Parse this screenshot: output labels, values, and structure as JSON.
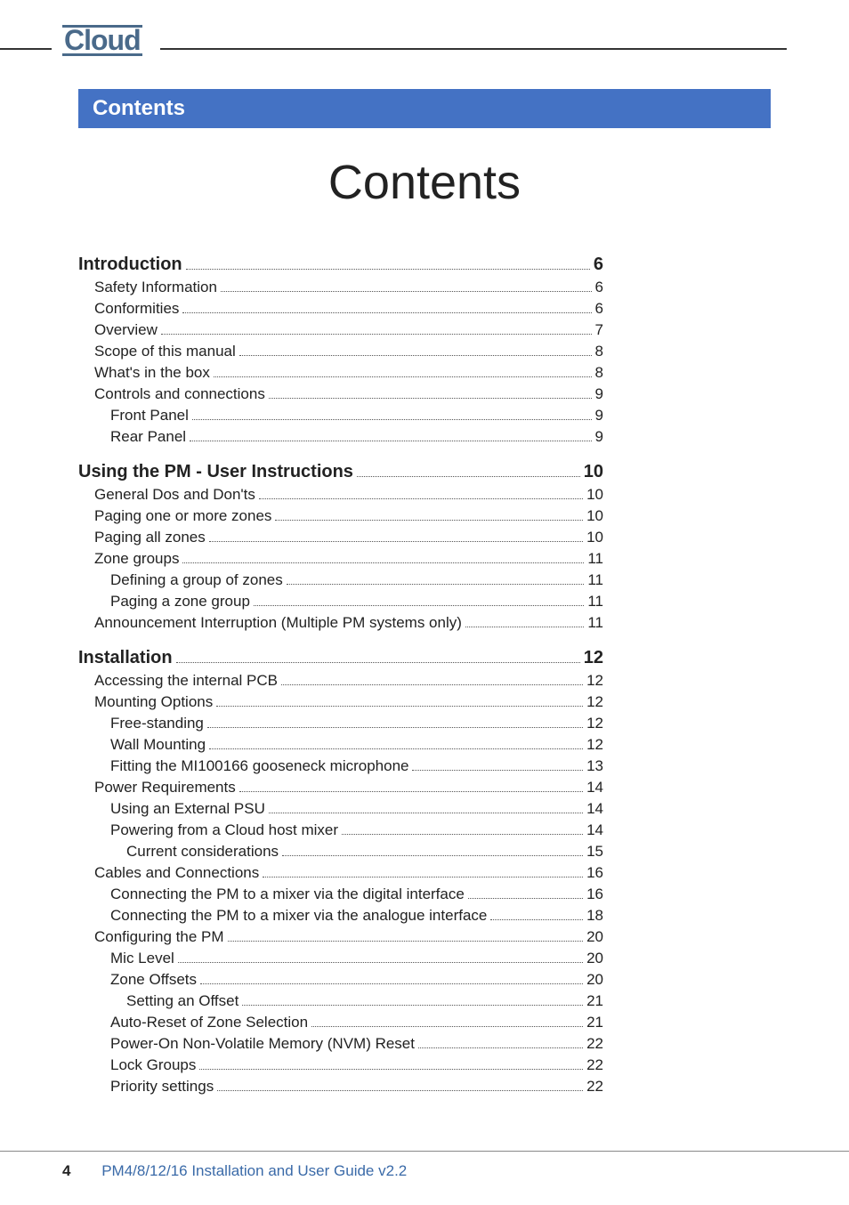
{
  "brand": "Cloud",
  "section_bar": "Contents",
  "main_title": "Contents",
  "footer": {
    "page": "4",
    "doc": "PM4/8/12/16 Installation and User Guide v2.2"
  },
  "colors": {
    "bar_bg": "#4472c4",
    "bar_text": "#ffffff",
    "logo": "#4a6a8a",
    "footer_title": "#3a6aa8",
    "text": "#222222"
  },
  "toc": [
    {
      "level": 0,
      "label": "Introduction",
      "page": "6"
    },
    {
      "level": 1,
      "label": "Safety Information",
      "page": "6"
    },
    {
      "level": 1,
      "label": "Conformities",
      "page": "6"
    },
    {
      "level": 1,
      "label": "Overview",
      "page": "7"
    },
    {
      "level": 1,
      "label": "Scope of this manual",
      "page": "8"
    },
    {
      "level": 1,
      "label": "What's in the box",
      "page": "8"
    },
    {
      "level": 1,
      "label": "Controls and connections",
      "page": "9"
    },
    {
      "level": 2,
      "label": "Front Panel",
      "page": "9"
    },
    {
      "level": 2,
      "label": "Rear Panel",
      "page": "9"
    },
    {
      "level": 0,
      "label": "Using the PM - User Instructions",
      "page": "10"
    },
    {
      "level": 1,
      "label": "General Dos and Don'ts",
      "page": "10"
    },
    {
      "level": 1,
      "label": "Paging one or more zones",
      "page": "10"
    },
    {
      "level": 1,
      "label": "Paging all zones",
      "page": "10"
    },
    {
      "level": 1,
      "label": "Zone groups",
      "page": "11"
    },
    {
      "level": 2,
      "label": "Defining a group of zones",
      "page": "11"
    },
    {
      "level": 2,
      "label": "Paging a zone group",
      "page": "11"
    },
    {
      "level": 1,
      "label": "Announcement Interruption (Multiple PM systems only)",
      "page": "11"
    },
    {
      "level": 0,
      "label": "Installation",
      "page": "12"
    },
    {
      "level": 1,
      "label": "Accessing the internal PCB",
      "page": "12"
    },
    {
      "level": 1,
      "label": "Mounting Options",
      "page": "12"
    },
    {
      "level": 2,
      "label": "Free-standing",
      "page": "12"
    },
    {
      "level": 2,
      "label": "Wall Mounting",
      "page": "12"
    },
    {
      "level": 2,
      "label": "Fitting the MI100166 gooseneck microphone",
      "page": "13"
    },
    {
      "level": 1,
      "label": "Power Requirements",
      "page": "14"
    },
    {
      "level": 2,
      "label": "Using an External PSU",
      "page": "14"
    },
    {
      "level": 2,
      "label": "Powering from a Cloud host mixer",
      "page": "14"
    },
    {
      "level": 3,
      "label": "Current considerations",
      "page": "15"
    },
    {
      "level": 1,
      "label": "Cables and Connections",
      "page": "16"
    },
    {
      "level": 2,
      "label": "Connecting the PM to a mixer via the digital interface",
      "page": "16"
    },
    {
      "level": 2,
      "label": "Connecting the PM to a mixer via the analogue interface",
      "page": "18"
    },
    {
      "level": 1,
      "label": "Configuring the PM",
      "page": "20"
    },
    {
      "level": 2,
      "label": "Mic Level",
      "page": "20"
    },
    {
      "level": 2,
      "label": "Zone Offsets",
      "page": "20"
    },
    {
      "level": 3,
      "label": "Setting an Offset",
      "page": "21"
    },
    {
      "level": 2,
      "label": "Auto-Reset of Zone Selection",
      "page": "21"
    },
    {
      "level": 2,
      "label": "Power-On Non-Volatile Memory (NVM) Reset",
      "page": "22"
    },
    {
      "level": 2,
      "label": "Lock Groups",
      "page": "22"
    },
    {
      "level": 2,
      "label": "Priority settings",
      "page": "22"
    }
  ]
}
